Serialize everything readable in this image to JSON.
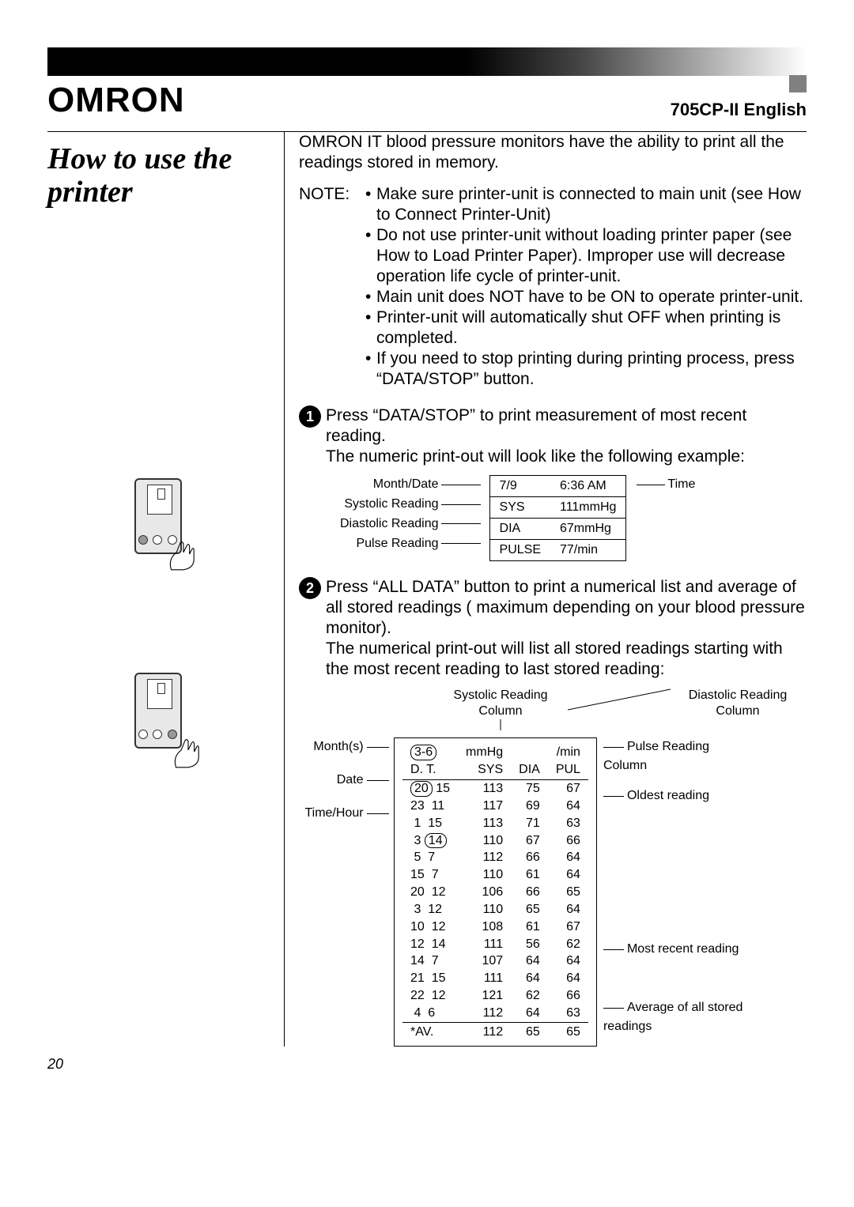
{
  "logo": "OMRON",
  "model": "705CP-II",
  "lang": "English",
  "title": "How to use the printer",
  "intro": "OMRON IT blood pressure monitors have the ability to print all the readings stored in memory.",
  "note_label": "NOTE:",
  "notes": [
    "Make sure printer-unit is connected to main unit (see How to Connect Printer-Unit)",
    "Do not use printer-unit without loading printer paper (see How to Load Printer Paper). Improper use will decrease operation life cycle of printer-unit.",
    "Main unit does NOT have to be ON to operate printer-unit.",
    "Printer-unit will automatically shut OFF when printing is completed.",
    "If you need to stop printing during printing process, press “DATA/STOP” button."
  ],
  "step1_a": "Press “DATA/STOP” to print measurement of most recent reading.",
  "step1_b": "The numeric print-out will look like the following example:",
  "ex1": {
    "labels_left": [
      "Month/Date",
      "Systolic Reading",
      "Diastolic Reading",
      "Pulse Reading"
    ],
    "rows": [
      [
        "7/9",
        "6:36 AM"
      ],
      [
        "SYS",
        "111mmHg"
      ],
      [
        "DIA",
        "67mmHg"
      ],
      [
        "PULSE",
        "77/min"
      ]
    ],
    "label_right": "Time"
  },
  "step2_a": "Press “ALL DATA” button to print a numerical list and average of all stored readings ( maximum depending on your blood pressure monitor).",
  "step2_b": "The numerical print-out will list all stored readings starting with the most recent reading to last stored reading:",
  "ex2": {
    "top_sys": "Systolic Reading Column",
    "top_dia": "Diastolic Reading Column",
    "left_labels": [
      "Month(s)",
      "Date",
      "Time/Hour"
    ],
    "right_pulse": "Pulse Reading Column",
    "right_oldest": "Oldest reading",
    "right_recent": "Most recent reading",
    "right_avg": "Average of all stored readings",
    "header_range": "3-6",
    "unit_mmhg": "mmHg",
    "unit_min": "/min",
    "col_dt": "D. T.",
    "col_sys": "SYS",
    "col_dia": "DIA",
    "col_pul": "PUL",
    "rows": [
      {
        "d": "20",
        "t": "15",
        "sys": 113,
        "dia": 75,
        "pul": 67
      },
      {
        "d": "23",
        "t": "11",
        "sys": 117,
        "dia": 69,
        "pul": 64
      },
      {
        "d": "1",
        "t": "15",
        "sys": 113,
        "dia": 71,
        "pul": 63
      },
      {
        "d": "3",
        "t": "14",
        "sys": 110,
        "dia": 67,
        "pul": 66
      },
      {
        "d": "5",
        "t": "7",
        "sys": 112,
        "dia": 66,
        "pul": 64
      },
      {
        "d": "15",
        "t": "7",
        "sys": 110,
        "dia": 61,
        "pul": 64
      },
      {
        "d": "20",
        "t": "12",
        "sys": 106,
        "dia": 66,
        "pul": 65
      },
      {
        "d": "3",
        "t": "12",
        "sys": 110,
        "dia": 65,
        "pul": 64
      },
      {
        "d": "10",
        "t": "12",
        "sys": 108,
        "dia": 61,
        "pul": 67
      },
      {
        "d": "12",
        "t": "14",
        "sys": 111,
        "dia": 56,
        "pul": 62
      },
      {
        "d": "14",
        "t": "7",
        "sys": 107,
        "dia": 64,
        "pul": 64
      },
      {
        "d": "21",
        "t": "15",
        "sys": 111,
        "dia": 64,
        "pul": 64
      },
      {
        "d": "22",
        "t": "12",
        "sys": 121,
        "dia": 62,
        "pul": 66
      },
      {
        "d": "4",
        "t": "6",
        "sys": 112,
        "dia": 64,
        "pul": 63
      }
    ],
    "avg_label": "*AV.",
    "avg": {
      "sys": 112,
      "dia": 65,
      "pul": 65
    }
  },
  "page_number": "20"
}
